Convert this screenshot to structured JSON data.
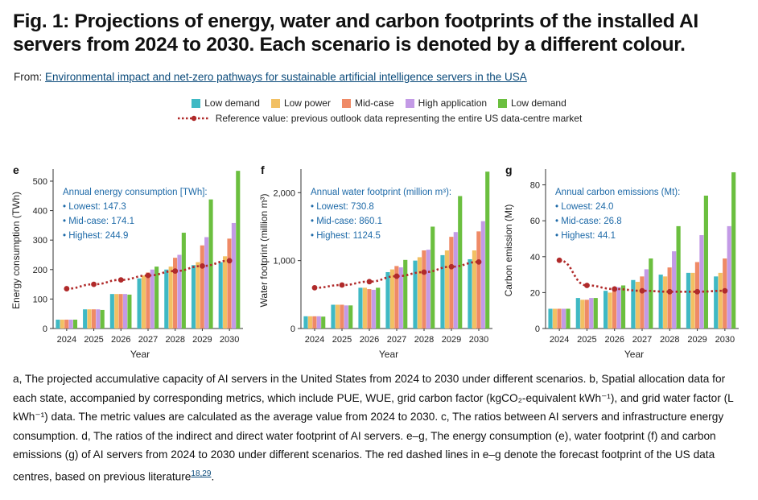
{
  "header": {
    "title": "Fig. 1: Projections of energy, water and carbon footprints of the installed AI servers from 2024 to 2030. Each scenario is denoted by a different colour.",
    "from_label": "From:",
    "from_link": "Environmental impact and net-zero pathways for sustainable artificial intelligence servers in the USA"
  },
  "legend": {
    "items": [
      {
        "label": "Low demand",
        "color": "#3fb9c4"
      },
      {
        "label": "Low power",
        "color": "#f2c063"
      },
      {
        "label": "Mid-case",
        "color": "#ef8a66"
      },
      {
        "label": "High application",
        "color": "#c39ae6"
      },
      {
        "label": "Low demand",
        "color": "#6bbf3f"
      }
    ],
    "reference_label": "Reference value: previous outlook data representing the entire US data-centre market",
    "reference_color": "#b02a2a"
  },
  "chart_data": [
    {
      "panel": "e",
      "type": "bar",
      "categories": [
        "2024",
        "2025",
        "2026",
        "2027",
        "2028",
        "2029",
        "2030"
      ],
      "xlabel": "Year",
      "ylabel": "Energy consumption (TWh)",
      "ylim": [
        0,
        530
      ],
      "yticks": [
        0,
        100,
        200,
        300,
        400,
        500
      ],
      "ytick_labels": [
        "0",
        "100",
        "200",
        "300",
        "400",
        "500"
      ],
      "series": [
        {
          "name": "Low demand",
          "values": [
            30,
            65,
            117,
            170,
            200,
            215,
            225
          ]
        },
        {
          "name": "Low power",
          "values": [
            30,
            65,
            117,
            180,
            210,
            225,
            245
          ]
        },
        {
          "name": "Mid-case",
          "values": [
            30,
            65,
            117,
            190,
            240,
            282,
            305
          ]
        },
        {
          "name": "High application",
          "values": [
            30,
            65,
            117,
            200,
            250,
            310,
            358
          ]
        },
        {
          "name": "Low demand",
          "values": [
            30,
            63,
            115,
            210,
            325,
            438,
            535
          ]
        }
      ],
      "reference": [
        135,
        150,
        165,
        180,
        195,
        212,
        230
      ],
      "annotation": {
        "heading": "Annual energy consumption [TWh]:",
        "lines": [
          "Lowest: 147.3",
          "Mid-case: 174.1",
          "Highest: 244.9"
        ]
      }
    },
    {
      "panel": "f",
      "type": "bar",
      "categories": [
        "2024",
        "2025",
        "2026",
        "2027",
        "2028",
        "2029",
        "2030"
      ],
      "xlabel": "Year",
      "ylabel": "Water footprint (million m³)",
      "ylim": [
        0,
        2300
      ],
      "yticks": [
        0,
        1000,
        2000
      ],
      "ytick_labels": [
        "0",
        "1,000",
        "2,000"
      ],
      "series": [
        {
          "name": "Low demand",
          "values": [
            180,
            350,
            600,
            830,
            1000,
            1080,
            1020
          ]
        },
        {
          "name": "Low power",
          "values": [
            180,
            350,
            600,
            870,
            1050,
            1150,
            1150
          ]
        },
        {
          "name": "Mid-case",
          "values": [
            180,
            350,
            580,
            920,
            1150,
            1350,
            1430
          ]
        },
        {
          "name": "High application",
          "values": [
            180,
            340,
            570,
            900,
            1160,
            1420,
            1580
          ]
        },
        {
          "name": "Low demand",
          "values": [
            175,
            340,
            600,
            1010,
            1500,
            1950,
            2310
          ]
        }
      ],
      "reference": [
        600,
        640,
        690,
        770,
        830,
        910,
        980
      ],
      "annotation": {
        "heading": "Annual water footprint (million m³):",
        "lines": [
          "Lowest: 730.8",
          "Mid-case: 860.1",
          "Highest: 1124.5"
        ]
      }
    },
    {
      "panel": "g",
      "type": "bar",
      "categories": [
        "2024",
        "2025",
        "2026",
        "2027",
        "2028",
        "2029",
        "2030"
      ],
      "xlabel": "Year",
      "ylabel": "Carbon emission (Mt)",
      "ylim": [
        0,
        87
      ],
      "yticks": [
        0,
        20,
        40,
        60,
        80
      ],
      "ytick_labels": [
        "0",
        "20",
        "40",
        "60",
        "80"
      ],
      "series": [
        {
          "name": "Low demand",
          "values": [
            11,
            17,
            21,
            27,
            30,
            31,
            29
          ]
        },
        {
          "name": "Low power",
          "values": [
            11,
            16,
            20,
            26,
            29,
            31,
            31
          ]
        },
        {
          "name": "Mid-case",
          "values": [
            11,
            16,
            22,
            29,
            34,
            37,
            39
          ]
        },
        {
          "name": "High application",
          "values": [
            11,
            17,
            23,
            33,
            43,
            52,
            57
          ]
        },
        {
          "name": "Low demand",
          "values": [
            11,
            17,
            24,
            39,
            57,
            74,
            87
          ]
        }
      ],
      "reference": [
        38,
        24,
        22,
        21,
        20.5,
        20.5,
        21
      ],
      "annotation": {
        "heading": "Annual carbon emissions (Mt):",
        "lines": [
          "Lowest: 24.0",
          "Mid-case: 26.8",
          "Highest: 44.1"
        ]
      }
    }
  ],
  "caption": {
    "text": "a, The projected accumulative capacity of AI servers in the United States from 2024 to 2030 under different scenarios. b, Spatial allocation data for each state, accompanied by corresponding metrics, which include PUE, WUE, grid carbon factor (kgCO₂-equivalent kWh⁻¹), and grid water factor (L kWh⁻¹) data. The metric values are calculated as the average value from 2024 to 2030. c, The ratios between AI servers and infrastructure energy consumption. d, The ratios of the indirect and direct water footprint of AI servers. e–g, The energy consumption (e), water footprint (f) and carbon emissions (g) of AI servers from 2024 to 2030 under different scenarios. The red dashed lines in e–g denote the forecast footprint of the US data centres, based on previous literature",
    "refs": "18,29",
    "end": "."
  }
}
